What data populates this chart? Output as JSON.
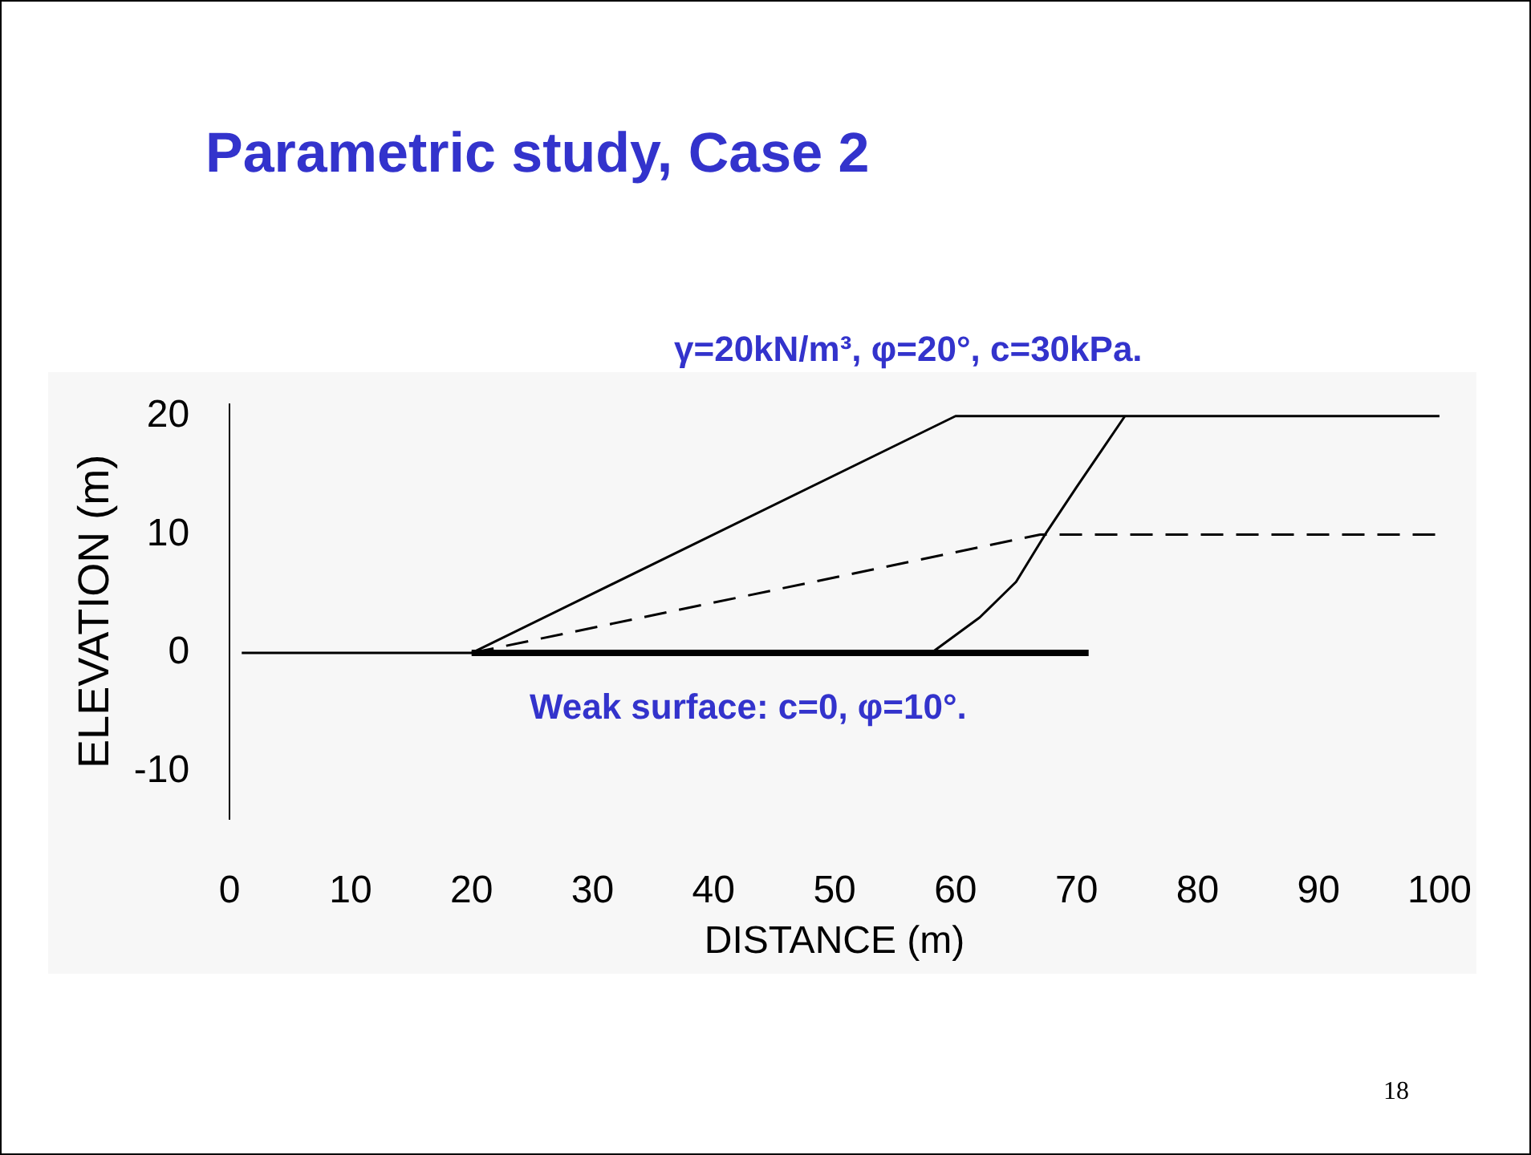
{
  "chart_data": {
    "type": "line",
    "title": "Parametric study, Case 2",
    "xlabel": "DISTANCE (m)",
    "ylabel": "ELEVATION (m)",
    "xlim": [
      0,
      100
    ],
    "xticks": [
      0,
      10,
      20,
      30,
      40,
      50,
      60,
      70,
      80,
      90,
      100
    ],
    "ylim": [
      -14,
      21
    ],
    "yticks": [
      -10,
      0,
      10,
      20
    ],
    "grid": false,
    "legend": false,
    "marker": "none",
    "line_style": "solid",
    "series": [
      {
        "color": "#000000",
        "x": [
          1,
          20,
          60,
          100
        ],
        "values": [
          0,
          0,
          20,
          20
        ]
      },
      {
        "color": "#000000",
        "line_style": "dashed",
        "x": [
          20,
          60,
          67,
          100
        ],
        "values": [
          0,
          8.5,
          10,
          10
        ]
      },
      {
        "color": "#000000",
        "x": [
          20,
          58,
          62,
          65,
          67.4,
          70,
          72,
          74
        ],
        "values": [
          0,
          0,
          3,
          6,
          10,
          14,
          17,
          20
        ]
      },
      {
        "color": "#000000",
        "x": [
          20,
          71
        ],
        "values": [
          0,
          0
        ]
      }
    ],
    "annotations": [
      "γ=20kN/m³, φ=20°, c=30kPa.",
      "Weak surface: c=0, φ=10°.",
      "18"
    ]
  }
}
